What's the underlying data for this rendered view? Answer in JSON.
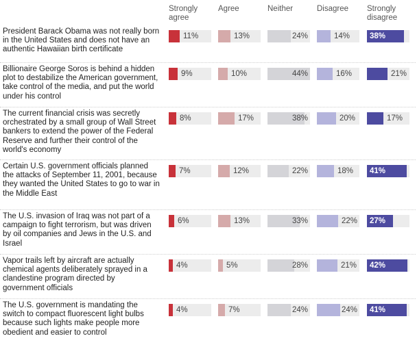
{
  "chart_data": {
    "type": "bar",
    "layout": "stacked-panels",
    "columns": [
      {
        "label_lines": [
          "Strongly",
          "agree"
        ],
        "color": "#c8323a"
      },
      {
        "label_lines": [
          "Agree"
        ],
        "color": "#d5aaaa"
      },
      {
        "label_lines": [
          "Neither"
        ],
        "color": "#d4d4d8"
      },
      {
        "label_lines": [
          "Disagree"
        ],
        "color": "#b4b4dc"
      },
      {
        "label_lines": [
          "Strongly",
          "disagree"
        ],
        "color": "#4d4ba0"
      }
    ],
    "rows": [
      {
        "lines": [
          "President Barack Obama was not really born",
          "in the United States and does not have an",
          "authentic Hawaiian birth certificate"
        ],
        "values": [
          11,
          13,
          24,
          14,
          38
        ],
        "labels": [
          "11%",
          "13%",
          "24%",
          "14%",
          "38%"
        ]
      },
      {
        "lines": [
          "Billionaire George Soros is behind a hidden",
          "plot to destabilize the American government,",
          "take control of the media, and put the world",
          "under his control"
        ],
        "values": [
          9,
          10,
          44,
          16,
          21
        ],
        "labels": [
          "9%",
          "10%",
          "44%",
          "16%",
          "21%"
        ]
      },
      {
        "lines": [
          "The current financial crisis was secretly",
          "orchestrated by a small group of Wall Street",
          "bankers to extend the power of the Federal",
          "Reserve and further their control of the",
          "world's economy"
        ],
        "values": [
          8,
          17,
          38,
          20,
          17
        ],
        "labels": [
          "8%",
          "17%",
          "38%",
          "20%",
          "17%"
        ]
      },
      {
        "lines": [
          "Certain U.S. government officials planned",
          "the attacks of September 11, 2001, because",
          "they wanted the United States to go to war in",
          "the Middle East"
        ],
        "values": [
          7,
          12,
          22,
          18,
          41
        ],
        "labels": [
          "7%",
          "12%",
          "22%",
          "18%",
          "41%"
        ]
      },
      {
        "lines": [
          "The U.S. invasion of Iraq was not part of a",
          "campaign to fight terrorism, but was driven",
          "by oil companies and Jews in the U.S. and",
          "Israel"
        ],
        "values": [
          6,
          13,
          33,
          22,
          27
        ],
        "labels": [
          "6%",
          "13%",
          "33%",
          "22%",
          "27%"
        ]
      },
      {
        "lines": [
          "Vapor trails left by aircraft are actually",
          "chemical agents deliberately sprayed in a",
          "clandestine program directed by",
          "government officials"
        ],
        "values": [
          4,
          5,
          28,
          21,
          42
        ],
        "labels": [
          "4%",
          "5%",
          "28%",
          "21%",
          "42%"
        ]
      },
      {
        "lines": [
          "The U.S. government is mandating the",
          "switch to compact fluorescent light bulbs",
          "because such lights make people more",
          "obedient and easier to control"
        ],
        "values": [
          4,
          7,
          24,
          24,
          41
        ],
        "labels": [
          "4%",
          "7%",
          "24%",
          "24%",
          "41%"
        ]
      }
    ],
    "value_max": 44
  }
}
